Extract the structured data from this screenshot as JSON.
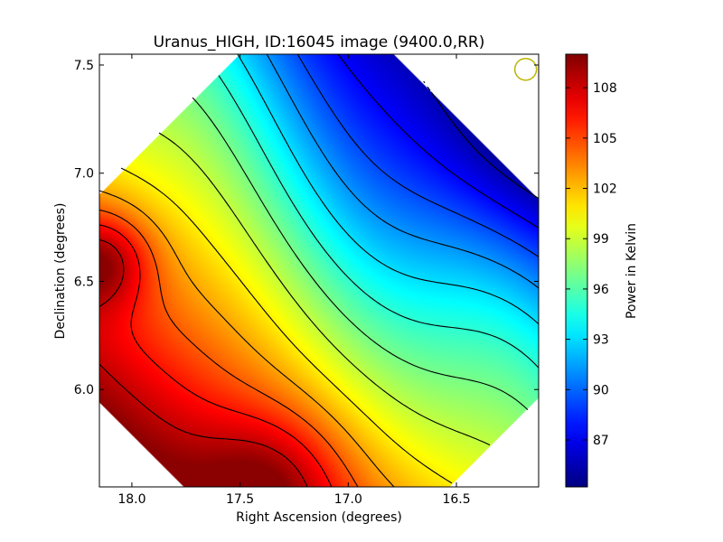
{
  "chart_data": {
    "type": "heatmap",
    "title": "Uranus_HIGH, ID:16045 image (9400.0,RR)",
    "xlabel": "Right Ascension (degrees)",
    "ylabel": "Declination (degrees)",
    "xlim": [
      18.15,
      16.12
    ],
    "ylim": [
      5.55,
      7.55
    ],
    "x_inverted": true,
    "x_ticks": [
      {
        "value": 18.0,
        "label": "18.0"
      },
      {
        "value": 17.5,
        "label": "17.5"
      },
      {
        "value": 17.0,
        "label": "17.0"
      },
      {
        "value": 16.5,
        "label": "16.5"
      }
    ],
    "y_ticks": [
      {
        "value": 6.0,
        "label": "6.0"
      },
      {
        "value": 6.5,
        "label": "6.5"
      },
      {
        "value": 7.0,
        "label": "7.0"
      },
      {
        "value": 7.5,
        "label": "7.5"
      }
    ],
    "colormap": "jet",
    "colorbar": {
      "label": "Power in Kelvin",
      "range": [
        84.2,
        110.0
      ],
      "ticks": [
        {
          "value": 87,
          "label": "87"
        },
        {
          "value": 90,
          "label": "90"
        },
        {
          "value": 93,
          "label": "93"
        },
        {
          "value": 96,
          "label": "96"
        },
        {
          "value": 99,
          "label": "99"
        },
        {
          "value": 102,
          "label": "102"
        },
        {
          "value": 105,
          "label": "105"
        },
        {
          "value": 108,
          "label": "108"
        }
      ]
    },
    "map_footprint": "diamond (scan region rotated 45 degrees), centered near RA 17.13, Dec 6.55",
    "peak_high": {
      "ra": 18.14,
      "dec": 6.6,
      "value": 110
    },
    "peak_high_secondary": {
      "ra": 17.35,
      "dec": 5.58,
      "value": 109.5
    },
    "trough_low": {
      "ra": 16.2,
      "dec": 7.1,
      "value": 84.5
    },
    "contours": "black contour lines at regular intervals of power",
    "beam_marker": {
      "shape": "circle",
      "ra": 16.18,
      "dec": 7.48,
      "color": "#bdb400"
    },
    "grid": false
  }
}
